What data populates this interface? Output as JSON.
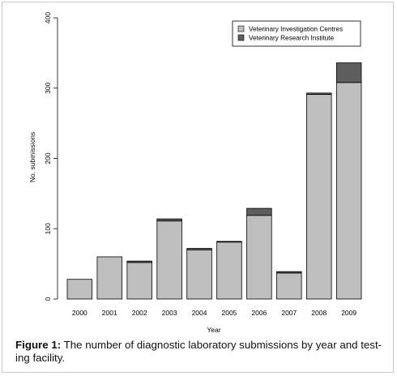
{
  "chart_data": {
    "type": "bar",
    "stacked": true,
    "categories": [
      "2000",
      "2001",
      "2002",
      "2003",
      "2004",
      "2005",
      "2006",
      "2007",
      "2008",
      "2009"
    ],
    "series": [
      {
        "name": "Veterinary Investigation Centres",
        "color": "#bebebe",
        "values": [
          28,
          60,
          52,
          111,
          70,
          81,
          119,
          37,
          291,
          308
        ]
      },
      {
        "name": "Veterinary Research Institute",
        "color": "#5e5e5e",
        "values": [
          0,
          0,
          2,
          3,
          2,
          1,
          10,
          2,
          2,
          28
        ]
      }
    ],
    "xlabel": "Year",
    "ylabel": "No. submissions",
    "ylim": [
      0,
      400
    ],
    "yticks": [
      0,
      100,
      200,
      300,
      400
    ],
    "legend_position": "top-right",
    "grid": false
  },
  "caption": {
    "label": "Figure 1:",
    "text": " The number of diagnostic laboratory submissions by year and test-ing facility."
  }
}
